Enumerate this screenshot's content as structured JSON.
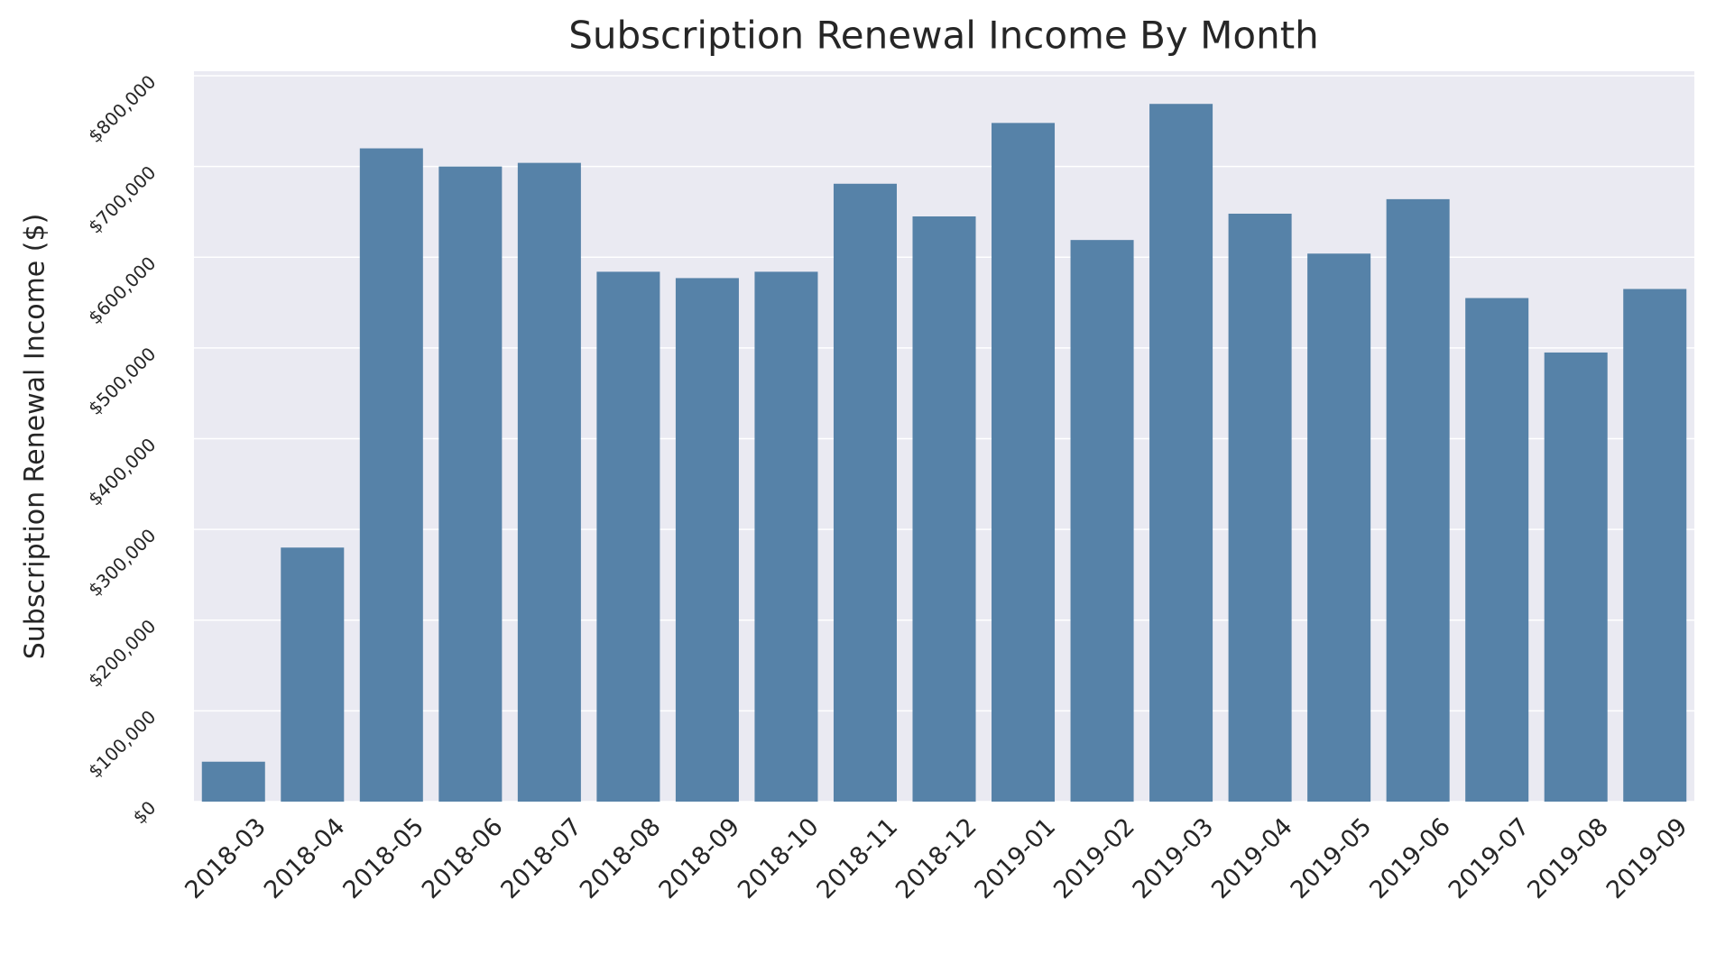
{
  "chart_data": {
    "type": "bar",
    "title": "Subscription Renewal Income By Month",
    "y_label": "Subscription Renewal Income ($)",
    "categories": [
      "2018-03",
      "2018-04",
      "2018-05",
      "2018-06",
      "2018-07",
      "2018-08",
      "2018-09",
      "2018-10",
      "2018-11",
      "2018-12",
      "2019-01",
      "2019-02",
      "2019-03",
      "2019-04",
      "2019-05",
      "2019-06",
      "2019-07",
      "2019-08",
      "2019-09"
    ],
    "values": [
      44000,
      280000,
      720000,
      700000,
      704000,
      584000,
      577000,
      584000,
      681000,
      645000,
      748000,
      619000,
      769000,
      648000,
      604000,
      664000,
      555000,
      495000,
      565000
    ],
    "color": "#5682a8",
    "ylim": [
      0,
      805000
    ],
    "yticks": [
      {
        "value": 0,
        "label": "$0"
      },
      {
        "value": 100000,
        "label": "$100,000"
      },
      {
        "value": 200000,
        "label": "$200,000"
      },
      {
        "value": 300000,
        "label": "$300,000"
      },
      {
        "value": 400000,
        "label": "$400,000"
      },
      {
        "value": 500000,
        "label": "$500,000"
      },
      {
        "value": 600000,
        "label": "$600,000"
      },
      {
        "value": 700000,
        "label": "$700,000"
      },
      {
        "value": 800000,
        "label": "$800,000"
      }
    ],
    "grid": true
  }
}
